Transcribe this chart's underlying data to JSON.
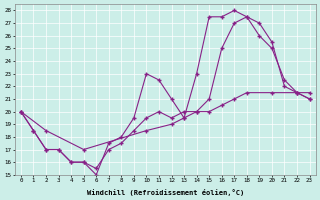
{
  "xlabel": "Windchill (Refroidissement éolien,°C)",
  "bg_color": "#cceee8",
  "line_color": "#882288",
  "xlim": [
    -0.5,
    23.5
  ],
  "ylim": [
    15,
    28.5
  ],
  "xticks": [
    0,
    1,
    2,
    3,
    4,
    5,
    6,
    7,
    8,
    9,
    10,
    11,
    12,
    13,
    14,
    15,
    16,
    17,
    18,
    19,
    20,
    21,
    22,
    23
  ],
  "yticks": [
    15,
    16,
    17,
    18,
    19,
    20,
    21,
    22,
    23,
    24,
    25,
    26,
    27,
    28
  ],
  "line1_x": [
    0,
    1,
    2,
    3,
    4,
    5,
    6,
    7,
    8,
    9,
    10,
    11,
    12,
    13,
    14,
    15,
    16,
    17,
    18,
    19,
    20,
    21,
    22,
    23
  ],
  "line1_y": [
    20,
    18.5,
    17,
    17,
    16,
    16,
    15,
    17.5,
    18,
    19.5,
    23,
    22.5,
    21,
    19.5,
    23,
    27.5,
    27.5,
    28,
    27.5,
    27,
    25.5,
    22,
    21.5,
    21
  ],
  "line2_x": [
    0,
    1,
    2,
    3,
    4,
    5,
    6,
    7,
    8,
    9,
    10,
    11,
    12,
    13,
    14,
    15,
    16,
    17,
    18,
    19,
    20,
    21,
    22,
    23
  ],
  "line2_y": [
    20,
    18.5,
    17,
    17,
    16,
    16,
    15.5,
    17,
    17.5,
    18.5,
    19.5,
    20,
    19.5,
    20,
    20,
    21,
    25,
    27,
    27.5,
    26,
    25,
    22.5,
    21.5,
    21
  ],
  "line3_x": [
    0,
    2,
    5,
    10,
    12,
    13,
    14,
    15,
    16,
    17,
    18,
    20,
    22,
    23
  ],
  "line3_y": [
    20,
    18.5,
    17,
    18.5,
    19,
    19.5,
    20,
    20,
    20.5,
    21,
    21.5,
    21.5,
    21.5,
    21.5
  ]
}
